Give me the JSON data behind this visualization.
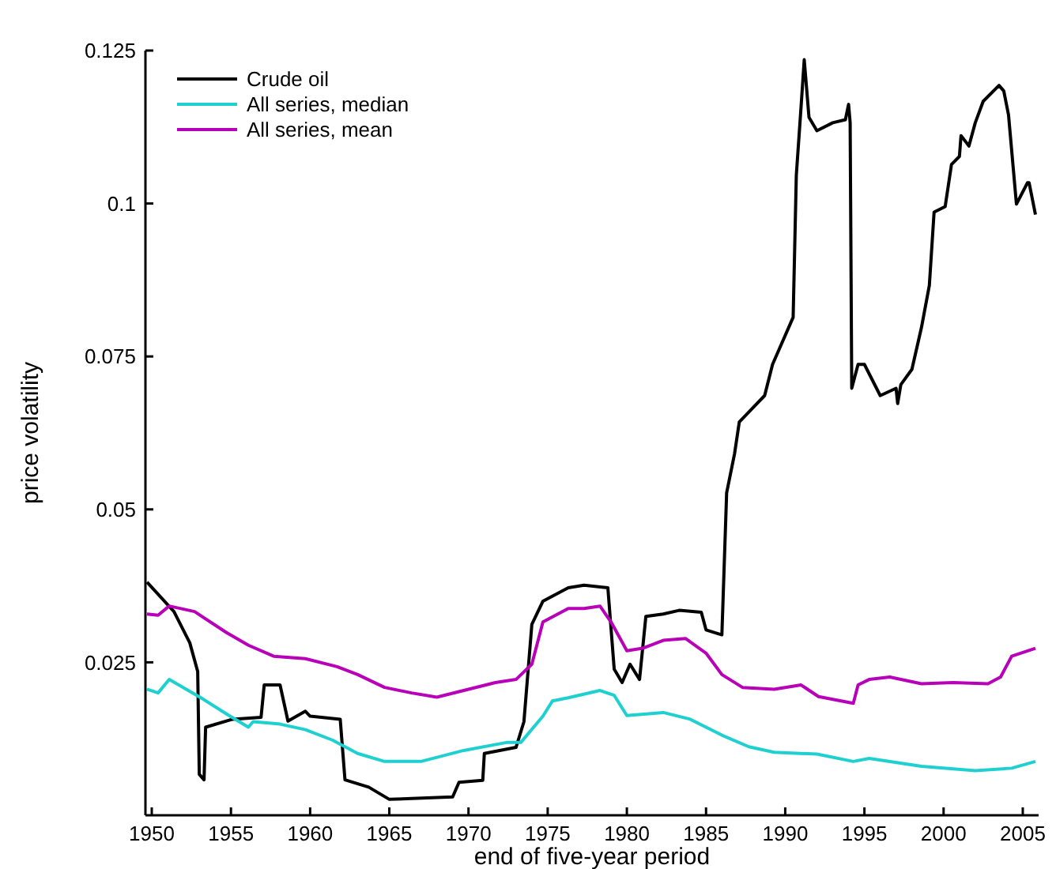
{
  "chart_data": {
    "type": "line",
    "xlabel": "end of five-year period",
    "ylabel": "price volatility",
    "xlim": [
      1949.6,
      2006
    ],
    "xticks": [
      1950,
      1955,
      1960,
      1965,
      1970,
      1975,
      1980,
      1985,
      1990,
      1995,
      2000,
      2005
    ],
    "ylim": [
      0,
      0.125
    ],
    "yticks": [
      0.025,
      0.05,
      0.075,
      0.1,
      0.125
    ],
    "legend": "top left",
    "series": [
      {
        "name": "Crude oil",
        "color": "#000000",
        "x": [
          1949.7,
          1951.4,
          1952.4,
          1952.9,
          1953.0,
          1953.3,
          1953.4,
          1955.1,
          1956.9,
          1957.1,
          1958.1,
          1958.6,
          1959.7,
          1960.0,
          1961.9,
          1962.2,
          1963.7,
          1965.0,
          1969.0,
          1969.4,
          1970.9,
          1971.0,
          1973.0,
          1973.5,
          1974.0,
          1974.7,
          1976.3,
          1977.3,
          1978.8,
          1979.2,
          1979.7,
          1980.2,
          1980.8,
          1981.2,
          1982.3,
          1983.3,
          1984.7,
          1985.0,
          1986.0,
          1986.3,
          1986.8,
          1987.1,
          1988.7,
          1989.2,
          1990.5,
          1990.7,
          1991.0,
          1991.2,
          1991.5,
          1992.0,
          1993.0,
          1993.8,
          1994.0,
          1994.1,
          1994.2,
          1994.6,
          1995.0,
          1996.0,
          1997.0,
          1997.1,
          1997.3,
          1998.0,
          1998.6,
          1999.1,
          1999.4,
          2000.1,
          2000.5,
          2001.0,
          2001.1,
          2001.6,
          2002.0,
          2002.5,
          2003.5,
          2003.8,
          2004.1,
          2004.6,
          2005.3,
          2005.4,
          2005.8
        ],
        "values": [
          0.0381,
          0.0333,
          0.0282,
          0.0235,
          0.0067,
          0.0058,
          0.0144,
          0.0157,
          0.016,
          0.0213,
          0.0213,
          0.0154,
          0.017,
          0.0162,
          0.0157,
          0.0058,
          0.0046,
          0.0026,
          0.003,
          0.0054,
          0.0057,
          0.0101,
          0.0111,
          0.0153,
          0.0312,
          0.035,
          0.0372,
          0.0376,
          0.0372,
          0.0239,
          0.0217,
          0.0247,
          0.0222,
          0.0325,
          0.0329,
          0.0335,
          0.0332,
          0.0303,
          0.0295,
          0.0527,
          0.0591,
          0.0643,
          0.0686,
          0.0737,
          0.0814,
          0.1046,
          0.1158,
          0.1235,
          0.1141,
          0.1119,
          0.1132,
          0.1137,
          0.1162,
          0.1132,
          0.0698,
          0.0737,
          0.0737,
          0.0686,
          0.0698,
          0.0673,
          0.0704,
          0.0729,
          0.0797,
          0.0866,
          0.0986,
          0.0995,
          0.1064,
          0.1077,
          0.1111,
          0.1094,
          0.1132,
          0.1167,
          0.1193,
          0.1184,
          0.1145,
          0.0999,
          0.1034,
          0.1034,
          0.0982
        ]
      },
      {
        "name": "All series, median",
        "color": "#1fd0d0",
        "x": [
          1949.7,
          1950.4,
          1951.1,
          1953.1,
          1954.7,
          1956.1,
          1956.4,
          1958.1,
          1959.7,
          1961.4,
          1963.0,
          1964.7,
          1967.0,
          1969.7,
          1972.4,
          1973.3,
          1974.7,
          1975.3,
          1976.3,
          1978.3,
          1979.2,
          1980.0,
          1982.3,
          1984.0,
          1986.0,
          1987.7,
          1989.3,
          1992.0,
          1994.3,
          1995.3,
          1998.6,
          2002.0,
          2004.3,
          2005.8
        ],
        "values": [
          0.0206,
          0.02,
          0.0222,
          0.0192,
          0.0166,
          0.0144,
          0.0153,
          0.0149,
          0.014,
          0.0123,
          0.0101,
          0.0088,
          0.0088,
          0.0106,
          0.0119,
          0.0119,
          0.0162,
          0.0187,
          0.0192,
          0.0204,
          0.0196,
          0.0163,
          0.0168,
          0.0157,
          0.0131,
          0.0112,
          0.0103,
          0.01,
          0.0088,
          0.0093,
          0.008,
          0.0073,
          0.0077,
          0.0088
        ]
      },
      {
        "name": "All series, mean",
        "color": "#b800b8",
        "x": [
          1949.7,
          1950.4,
          1951.1,
          1952.7,
          1954.7,
          1956.1,
          1957.7,
          1959.7,
          1961.7,
          1963.0,
          1964.7,
          1966.4,
          1968.0,
          1969.7,
          1971.7,
          1973.0,
          1974.0,
          1974.7,
          1976.3,
          1977.3,
          1978.3,
          1979.0,
          1980.0,
          1981.0,
          1982.3,
          1983.7,
          1985.0,
          1986.0,
          1987.3,
          1989.3,
          1991.0,
          1992.1,
          1994.3,
          1994.6,
          1995.3,
          1996.6,
          1998.6,
          2000.6,
          2002.8,
          2003.6,
          2004.3,
          2005.8
        ],
        "values": [
          0.0329,
          0.0327,
          0.0342,
          0.0333,
          0.0299,
          0.0278,
          0.026,
          0.0256,
          0.0243,
          0.023,
          0.0209,
          0.02,
          0.0193,
          0.0204,
          0.0217,
          0.0222,
          0.0247,
          0.0316,
          0.0338,
          0.0338,
          0.0342,
          0.0316,
          0.0269,
          0.0273,
          0.0286,
          0.0289,
          0.0265,
          0.023,
          0.0209,
          0.0206,
          0.0213,
          0.0194,
          0.0183,
          0.0213,
          0.0222,
          0.0226,
          0.0215,
          0.0217,
          0.0215,
          0.0226,
          0.026,
          0.0273
        ]
      }
    ]
  }
}
